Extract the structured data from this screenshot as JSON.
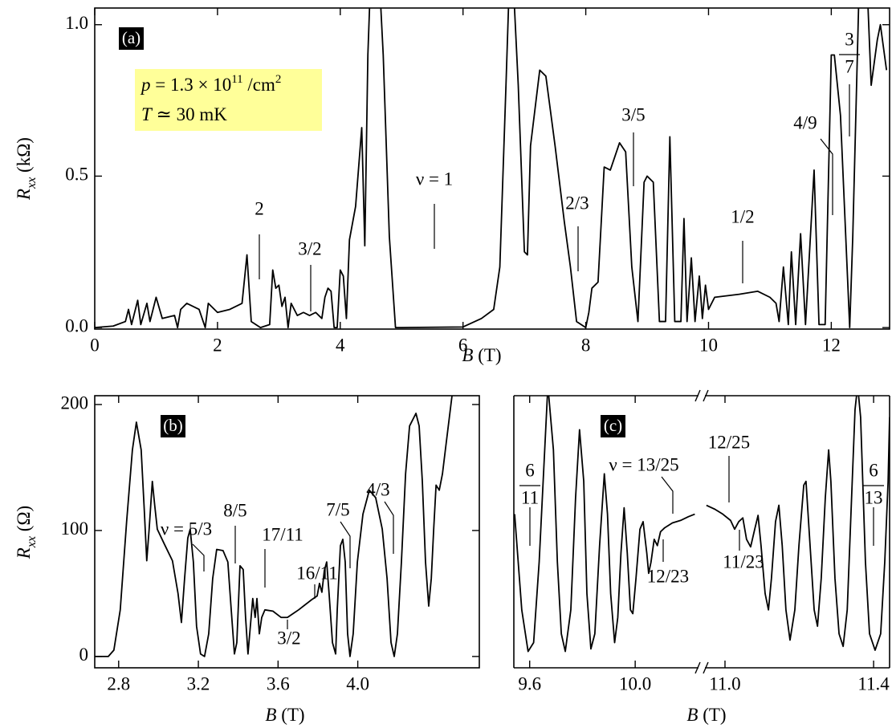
{
  "chart_data": [
    {
      "type": "line",
      "panel_label": "(a)",
      "color": "#000000",
      "y_label": [
        "R",
        "xx",
        " (kΩ)"
      ],
      "x_label": [
        "B",
        " (T)"
      ],
      "info": [
        [
          "p",
          " = 1.3 × 10",
          "11",
          " /cm",
          "2"
        ],
        [
          "T",
          " ≃ 30 mK"
        ]
      ],
      "xlim": [
        0,
        12.95
      ],
      "xticks": [
        0,
        2,
        4,
        6,
        8,
        10,
        12
      ],
      "ylim": [
        -0.005,
        1.055
      ],
      "yticks": [
        {
          "value": 0,
          "label": "0.0"
        },
        0.5,
        {
          "value": 1,
          "label": "1.0"
        }
      ],
      "annotations": [
        {
          "text": "2"
        },
        {
          "text": "3/2"
        },
        {
          "text": "ν = 1"
        },
        {
          "text": "2/3"
        },
        {
          "text": "3/5"
        },
        {
          "text": "1/2"
        },
        {
          "text": "4/9"
        },
        {
          "numerator": "3",
          "denominator": "7"
        }
      ],
      "x": [
        0,
        0.3,
        0.5,
        0.55,
        0.6,
        0.7,
        0.75,
        0.85,
        0.9,
        1.0,
        1.1,
        1.3,
        1.35,
        1.4,
        1.5,
        1.7,
        1.8,
        1.85,
        2.0,
        2.2,
        2.4,
        2.48,
        2.55,
        2.7,
        2.85,
        2.9,
        2.95,
        3.0,
        3.05,
        3.1,
        3.15,
        3.2,
        3.3,
        3.4,
        3.5,
        3.6,
        3.7,
        3.75,
        3.8,
        3.85,
        3.9,
        3.95,
        4.0,
        4.05,
        4.1,
        4.15,
        4.25,
        4.35,
        4.4,
        4.45,
        4.52,
        4.6,
        4.7,
        4.8,
        4.9,
        5.0,
        6.0,
        6.3,
        6.5,
        6.6,
        6.7,
        6.78,
        6.9,
        7.0,
        7.05,
        7.1,
        7.25,
        7.35,
        7.5,
        7.65,
        7.75,
        7.85,
        8.0,
        8.05,
        8.1,
        8.2,
        8.3,
        8.4,
        8.55,
        8.65,
        8.75,
        8.85,
        8.95,
        9.0,
        9.1,
        9.2,
        9.3,
        9.37,
        9.45,
        9.55,
        9.6,
        9.65,
        9.72,
        9.78,
        9.85,
        9.9,
        9.95,
        10.0,
        10.1,
        10.5,
        10.8,
        11.0,
        11.1,
        11.15,
        11.22,
        11.3,
        11.35,
        11.42,
        11.5,
        11.58,
        11.72,
        11.8,
        11.9,
        12.0,
        12.05,
        12.15,
        12.3,
        12.35,
        12.45,
        12.55,
        12.65,
        12.75,
        12.8,
        12.9
      ],
      "values": [
        0,
        0.005,
        0.02,
        0.06,
        0.01,
        0.09,
        0.01,
        0.08,
        0.02,
        0.1,
        0.03,
        0.04,
        0,
        0.06,
        0.08,
        0.06,
        0,
        0.08,
        0.05,
        0.06,
        0.08,
        0.24,
        0.02,
        0,
        0.01,
        0.19,
        0.13,
        0.14,
        0.07,
        0.1,
        0,
        0.08,
        0.04,
        0.05,
        0.04,
        0.05,
        0.03,
        0.1,
        0.13,
        0.12,
        0,
        0,
        0.19,
        0.17,
        0.03,
        0.29,
        0.4,
        0.66,
        0.27,
        0.9,
        1.3,
        1.3,
        0.9,
        0.3,
        0,
        0,
        0.002,
        0.03,
        0.06,
        0.2,
        0.8,
        1.3,
        0.8,
        0.25,
        0.24,
        0.6,
        0.85,
        0.83,
        0.6,
        0.35,
        0.2,
        0.02,
        0,
        0.05,
        0.13,
        0.15,
        0.53,
        0.52,
        0.61,
        0.58,
        0.2,
        0.02,
        0.48,
        0.5,
        0.48,
        0.02,
        0.02,
        0.63,
        0.02,
        0.02,
        0.36,
        0.02,
        0.23,
        0.02,
        0.17,
        0.03,
        0.14,
        0.06,
        0.1,
        0.11,
        0.12,
        0.1,
        0.08,
        0.02,
        0.2,
        0.01,
        0.25,
        0.01,
        0.31,
        0.01,
        0.52,
        0.01,
        0.01,
        0.9,
        0.9,
        0.7,
        0,
        0.3,
        1.1,
        1.3,
        0.8,
        0.95,
        1.0,
        0.85
      ]
    },
    {
      "type": "line",
      "panel_label": "(b)",
      "color": "#000000",
      "y_label": [
        "R",
        "xx",
        " (Ω)"
      ],
      "x_label": [
        "B",
        " (T)"
      ],
      "xlim": [
        2.68,
        4.61
      ],
      "xticks": [
        2.8,
        3.2,
        3.6,
        {
          "value": 4,
          "label": "4.0"
        }
      ],
      "ylim": [
        -9,
        207
      ],
      "yticks": [
        0,
        100,
        200
      ],
      "annotations": [
        {
          "text": "ν = 5/3"
        },
        {
          "text": "8/5"
        },
        {
          "text": "17/11"
        },
        {
          "text": "16/11"
        },
        {
          "text": "3/2"
        },
        {
          "text": "7/5"
        },
        {
          "text": "4/3"
        }
      ],
      "x": [
        2.68,
        2.748,
        2.776,
        2.808,
        2.84,
        2.869,
        2.889,
        2.913,
        2.929,
        2.941,
        2.953,
        2.969,
        2.981,
        2.994,
        3.03,
        3.07,
        3.098,
        3.115,
        3.131,
        3.147,
        3.159,
        3.175,
        3.191,
        3.211,
        3.231,
        3.252,
        3.272,
        3.292,
        3.324,
        3.348,
        3.365,
        3.381,
        3.393,
        3.409,
        3.425,
        3.437,
        3.449,
        3.461,
        3.473,
        3.485,
        3.494,
        3.506,
        3.518,
        3.534,
        3.574,
        3.615,
        3.647,
        3.703,
        3.768,
        3.796,
        3.808,
        3.82,
        3.832,
        3.844,
        3.856,
        3.873,
        3.889,
        3.897,
        3.913,
        3.925,
        3.937,
        3.949,
        3.961,
        3.977,
        3.998,
        4.026,
        4.058,
        4.09,
        4.123,
        4.147,
        4.167,
        4.183,
        4.199,
        4.219,
        4.24,
        4.26,
        4.292,
        4.308,
        4.324,
        4.34,
        4.356,
        4.369,
        4.381,
        4.393,
        4.409,
        4.425,
        4.445,
        4.473
      ],
      "values": [
        0,
        0,
        5,
        37,
        107,
        164,
        186,
        164,
        115,
        76,
        101,
        139,
        120,
        101,
        89,
        76,
        50,
        27,
        62,
        94,
        101,
        75,
        24,
        2,
        0,
        18,
        62,
        85,
        84,
        75,
        37,
        2,
        11,
        72,
        69,
        31,
        2,
        24,
        46,
        31,
        46,
        18,
        31,
        37,
        36,
        31,
        31,
        37,
        45,
        48,
        58,
        51,
        68,
        75,
        50,
        11,
        2,
        37,
        88,
        93,
        75,
        18,
        0,
        18,
        75,
        113,
        132,
        126,
        101,
        62,
        11,
        0,
        18,
        75,
        145,
        183,
        193,
        183,
        139,
        75,
        40,
        62,
        101,
        136,
        132,
        145,
        171,
        207
      ]
    },
    {
      "type": "line",
      "panel_label": "(c)",
      "color": "#000000",
      "x_label": [
        "B",
        " (T)"
      ],
      "xlim": [
        9.54,
        10.24
      ],
      "xticks": [
        9.6,
        {
          "value": 10,
          "label": "10.0"
        }
      ],
      "x2lim": [
        10.946,
        11.443
      ],
      "x2ticks": [
        {
          "value": 11,
          "label": "11.0"
        },
        11.4
      ],
      "ylim": [
        -9,
        207
      ],
      "annotations": [
        {
          "numerator": "6",
          "denominator": "11"
        },
        {
          "text": "ν = 13/25"
        },
        {
          "text": "12/23"
        },
        {
          "text": "12/25"
        },
        {
          "text": "11/23"
        },
        {
          "numerator": "6",
          "denominator": "13"
        }
      ],
      "series": [
        {
          "x": [
            9.543,
            9.57,
            9.594,
            9.615,
            9.636,
            9.657,
            9.669,
            9.69,
            9.705,
            9.72,
            9.735,
            9.756,
            9.774,
            9.789,
            9.805,
            9.817,
            9.832,
            9.847,
            9.865,
            9.883,
            9.895,
            9.907,
            9.922,
            9.934,
            9.946,
            9.958,
            9.97,
            9.982,
            9.991,
            10.003,
            10.018,
            10.03,
            10.044,
            10.051,
            10.06,
            10.072,
            10.084,
            10.096,
            10.111,
            10.141,
            10.172,
            10.202,
            10.226
          ],
          "values": [
            113,
            37,
            4,
            11,
            75,
            164,
            215,
            164,
            75,
            18,
            4,
            37,
            126,
            180,
            139,
            50,
            6,
            18,
            88,
            145,
            113,
            50,
            11,
            31,
            82,
            118,
            82,
            37,
            34,
            62,
            101,
            107,
            82,
            66,
            75,
            93,
            88,
            99,
            102,
            106,
            108,
            111,
            113
          ]
        },
        {
          "axis": "x2",
          "x": [
            10.95,
            10.972,
            10.994,
            11.015,
            11.026,
            11.037,
            11.048,
            11.058,
            11.069,
            11.08,
            11.089,
            11.097,
            11.108,
            11.117,
            11.125,
            11.136,
            11.145,
            11.154,
            11.164,
            11.175,
            11.188,
            11.199,
            11.212,
            11.218,
            11.229,
            11.24,
            11.249,
            11.259,
            11.27,
            11.279,
            11.285,
            11.296,
            11.307,
            11.318,
            11.329,
            11.339,
            11.35,
            11.357,
            11.365,
            11.378,
            11.389,
            11.404,
            11.419,
            11.43,
            11.439,
            11.443
          ],
          "values": [
            120,
            117,
            113,
            108,
            101,
            107,
            110,
            93,
            87,
            101,
            112,
            88,
            50,
            37,
            62,
            107,
            120,
            88,
            37,
            13,
            37,
            88,
            136,
            139,
            88,
            37,
            24,
            62,
            126,
            164,
            139,
            62,
            18,
            8,
            37,
            113,
            196,
            215,
            190,
            75,
            18,
            5,
            18,
            75,
            139,
            190
          ]
        }
      ]
    }
  ]
}
